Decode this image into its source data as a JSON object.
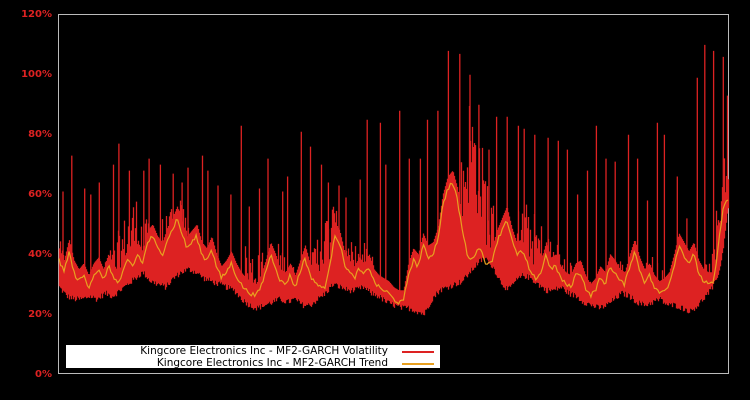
{
  "chart_data": {
    "type": "line",
    "title": "",
    "xlabel": "",
    "ylabel": "",
    "ylim": [
      0,
      120
    ],
    "y_ticks": [
      "0%",
      "20%",
      "40%",
      "60%",
      "80%",
      "100%",
      "120%"
    ],
    "grid": false,
    "legend_position": "lower-left",
    "series": [
      {
        "name": "Kingcore Electronics Inc - MF2-GARCH Volatility",
        "color": "#dd2222",
        "style": "dense noisy band with spikes",
        "lower_envelope": [
          28,
          25,
          24,
          24,
          25,
          24,
          26,
          25,
          27,
          29,
          31,
          33,
          30,
          29,
          28,
          31,
          33,
          34,
          33,
          31,
          30,
          29,
          28,
          27,
          24,
          22,
          21,
          22,
          23,
          24,
          23,
          24,
          22,
          22,
          24,
          26,
          29,
          28,
          27,
          27,
          28,
          26,
          25,
          23,
          22,
          21,
          21,
          20,
          19,
          24,
          27,
          28,
          29,
          30,
          33,
          36,
          38,
          35,
          30,
          27,
          30,
          32,
          31,
          29,
          27,
          27,
          28,
          26,
          25,
          23,
          22,
          21,
          22,
          24,
          26,
          25,
          23,
          22,
          23,
          24,
          22,
          22,
          21,
          20,
          22,
          25,
          28,
          35,
          55
        ],
        "upper_envelope": [
          50,
          45,
          38,
          37,
          38,
          42,
          45,
          48,
          55,
          62,
          68,
          60,
          55,
          58,
          60,
          62,
          66,
          58,
          52,
          45,
          38,
          34,
          36,
          40,
          50,
          48,
          45,
          46,
          45,
          50,
          44,
          40,
          38,
          42,
          55,
          60,
          65,
          55,
          50,
          48,
          50,
          46,
          40,
          35,
          30,
          28,
          30,
          45,
          50,
          45,
          48,
          52,
          60,
          85,
          105,
          95,
          80,
          65,
          60,
          55,
          60,
          65,
          62,
          58,
          55,
          50,
          48,
          45,
          40,
          38,
          36,
          35,
          40,
          42,
          44,
          40,
          38,
          42,
          45,
          40,
          38,
          42,
          45,
          40,
          40,
          42,
          45,
          85,
          108
        ],
        "spike_peaks": [
          61,
          73,
          62,
          60,
          64,
          70,
          77,
          68,
          68,
          72,
          70,
          67,
          64,
          69,
          73,
          68,
          63,
          60,
          83,
          56,
          62,
          72,
          61,
          66,
          81,
          76,
          70,
          64,
          63,
          59,
          65,
          85,
          84,
          70,
          88,
          72,
          72,
          85,
          88,
          108,
          107,
          100,
          90,
          75,
          86,
          86,
          83,
          82,
          80,
          79,
          78,
          75,
          60,
          68,
          83,
          72,
          71,
          80,
          72,
          58,
          84,
          80,
          66,
          52,
          99,
          110,
          108,
          106
        ]
      },
      {
        "name": "Kingcore Electronics Inc - MF2-GARCH Trend",
        "color": "#e8a020",
        "values": [
          38,
          34,
          41,
          34,
          31,
          33,
          29,
          33,
          35,
          31,
          36,
          33,
          30,
          34,
          38,
          36,
          40,
          37,
          44,
          46,
          42,
          40,
          45,
          48,
          52,
          47,
          42,
          44,
          46,
          40,
          38,
          42,
          36,
          32,
          34,
          37,
          33,
          30,
          28,
          27,
          26,
          29,
          34,
          40,
          36,
          31,
          30,
          33,
          29,
          34,
          39,
          33,
          31,
          29,
          29,
          35,
          47,
          44,
          37,
          34,
          32,
          35,
          33,
          36,
          31,
          29,
          28,
          27,
          25,
          24,
          24,
          33,
          38,
          36,
          43,
          39,
          40,
          45,
          56,
          62,
          64,
          58,
          48,
          40,
          38,
          42,
          41,
          36,
          38,
          44,
          48,
          52,
          45,
          40,
          41,
          38,
          33,
          32,
          34,
          40,
          35,
          36,
          32,
          30,
          29,
          33,
          34,
          29,
          26,
          28,
          32,
          30,
          36,
          34,
          31,
          30,
          36,
          41,
          35,
          31,
          33,
          29,
          27,
          28,
          30,
          36,
          43,
          40,
          37,
          40,
          34,
          31,
          30,
          30,
          42,
          56,
          58
        ]
      }
    ]
  },
  "legend": {
    "items": [
      {
        "label": "Kingcore Electronics Inc - MF2-GARCH Volatility",
        "color": "#dd2222"
      },
      {
        "label": "Kingcore Electronics Inc - MF2-GARCH Trend",
        "color": "#e8a020"
      }
    ]
  },
  "axis": {
    "y_labels": [
      "120%",
      "100%",
      "80%",
      "60%",
      "40%",
      "20%",
      "0%"
    ]
  }
}
